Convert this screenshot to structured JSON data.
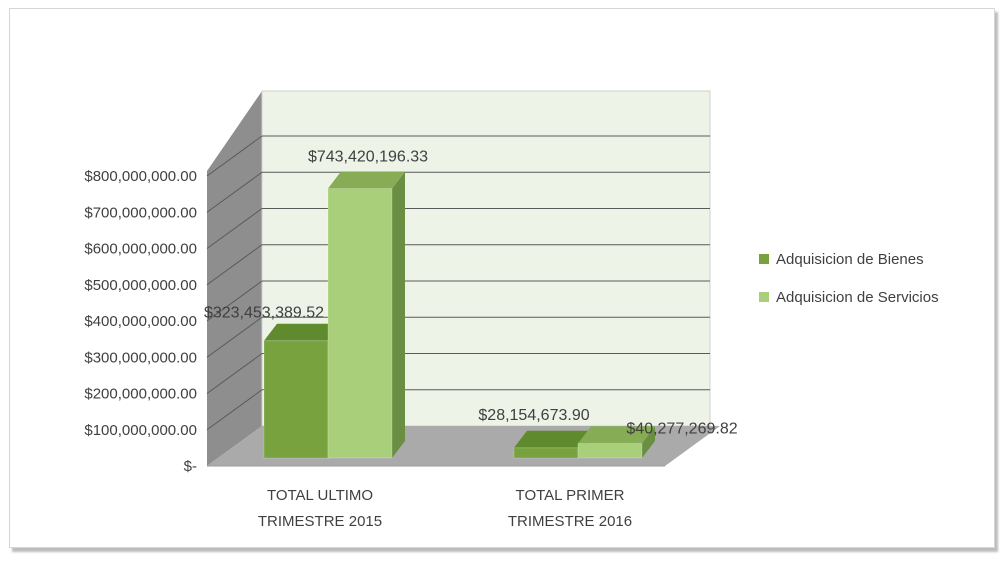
{
  "chart_data": {
    "type": "bar",
    "categories": [
      [
        "TOTAL ULTIMO",
        "TRIMESTRE 2015"
      ],
      [
        "TOTAL PRIMER",
        "TRIMESTRE 2016"
      ]
    ],
    "series": [
      {
        "name": "Adquisicion de Bienes",
        "values": [
          323453389.52,
          28154673.9
        ],
        "labels": [
          "$323,453,389.52",
          "$28,154,673.90"
        ]
      },
      {
        "name": "Adquisicion de Servicios",
        "values": [
          743420196.33,
          40277269.82
        ],
        "labels": [
          "$743,420,196.33",
          "$40,277,269.82"
        ]
      }
    ],
    "y_ticks": [
      "$-",
      "$100,000,000.00",
      "$200,000,000.00",
      "$300,000,000.00",
      "$400,000,000.00",
      "$500,000,000.00",
      "$600,000,000.00",
      "$700,000,000.00",
      "$800,000,000.00"
    ],
    "ylim": [
      0,
      800000000
    ],
    "grid": true,
    "legend_position": "right",
    "three_d": true,
    "colors": {
      "bienes_front": "#77a23e",
      "bienes_top": "#5f8a2d",
      "bienes_side": "#4e7524",
      "servicios_front": "#a9cf7a",
      "servicios_top": "#86ad55",
      "servicios_side": "#6a8f43",
      "back_wall": "#eef3e8",
      "side_wall": "#8e8e8e",
      "floor": "#aaaaaa",
      "grid": "#5a5a5a"
    }
  }
}
